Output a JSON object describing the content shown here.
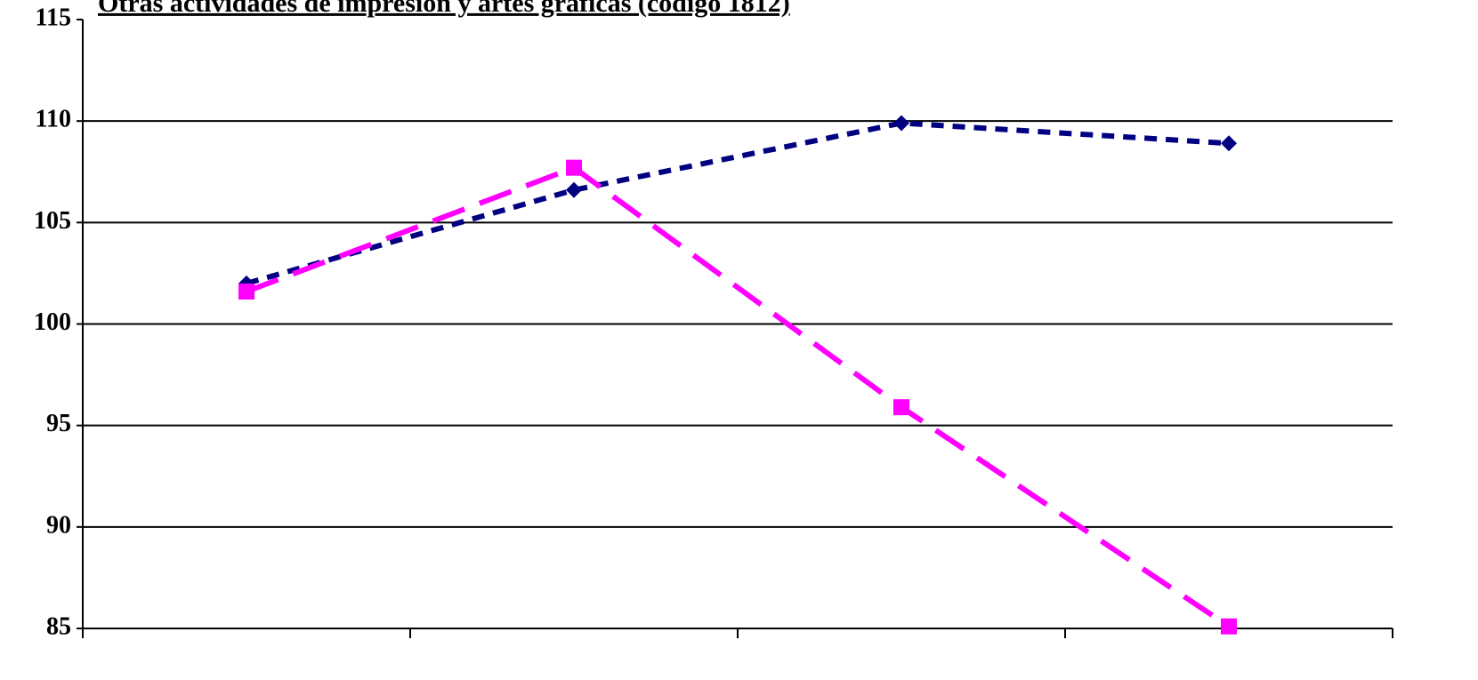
{
  "chart_data": {
    "type": "line",
    "title": "Otras actividades de impresión y artes gráficas (código 1812)",
    "categories": [
      null,
      null,
      null,
      null
    ],
    "series": [
      {
        "color": "#000080",
        "marker": "diamond",
        "dash": "dotted",
        "values": [
          102.0,
          106.6,
          109.9,
          108.9
        ]
      },
      {
        "color": "#ff00ff",
        "marker": "square",
        "dash": "dashed",
        "values": [
          101.6,
          107.7,
          95.9,
          85.1
        ]
      }
    ],
    "ylim": [
      85,
      115
    ],
    "yticks": [
      85,
      90,
      95,
      100,
      105,
      110,
      115
    ],
    "grid": true
  }
}
